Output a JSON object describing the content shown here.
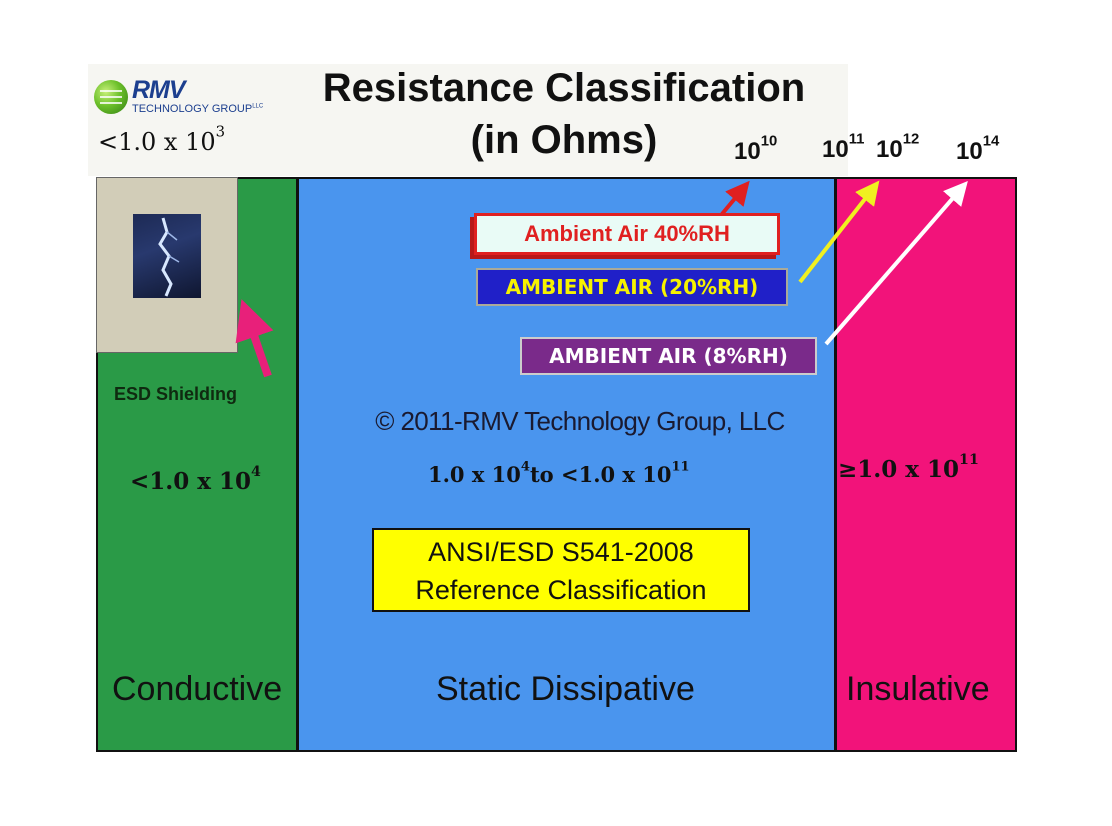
{
  "logo": {
    "name": "RMV",
    "sub": "TECHNOLOGY GROUP",
    "llc": "LLC"
  },
  "title": {
    "line1": "Resistance Classification",
    "line2": "(in Ohms)"
  },
  "exponents": {
    "lt_1e3_base": "<1.0 x 10",
    "lt_1e3_exp": "3",
    "e10_base": "10",
    "e10_exp": "10",
    "e11_base": "10",
    "e11_exp": "11",
    "e12_base": "10",
    "e12_exp": "12",
    "e14_base": "10",
    "e14_exp": "14"
  },
  "rh": {
    "ambient_40": "Ambient Air 40%RH",
    "ambient_20": "AMBIENT AIR (20%RH)",
    "ambient_8": "AMBIENT AIR (8%RH)"
  },
  "esd_shielding": "ESD Shielding",
  "copyright": "© 2011-RMV Technology Group, LLC",
  "ranges": {
    "conductive_base": "<1.0 x 10",
    "conductive_exp": "4",
    "dissipative_a": "1.0 x 10",
    "dissipative_a_exp": "4",
    "dissipative_b": "to <1.0 x 10",
    "dissipative_b_exp": "11",
    "insulative_base": "≥1.0 x 10",
    "insulative_exp": "11"
  },
  "ansi": {
    "line1": "ANSI/ESD S541-2008",
    "line2": "Reference Classification"
  },
  "zones": {
    "conductive": "Conductive",
    "dissipative": "Static Dissipative",
    "insulative": "Insulative"
  },
  "colors": {
    "conductive": "#2a9a47",
    "dissipative": "#4a95ee",
    "insulative": "#f2137a",
    "arrow_40": "#e02020",
    "arrow_20": "#f0f020",
    "arrow_8": "#ffffff",
    "arrow_esd": "#e8207a"
  }
}
